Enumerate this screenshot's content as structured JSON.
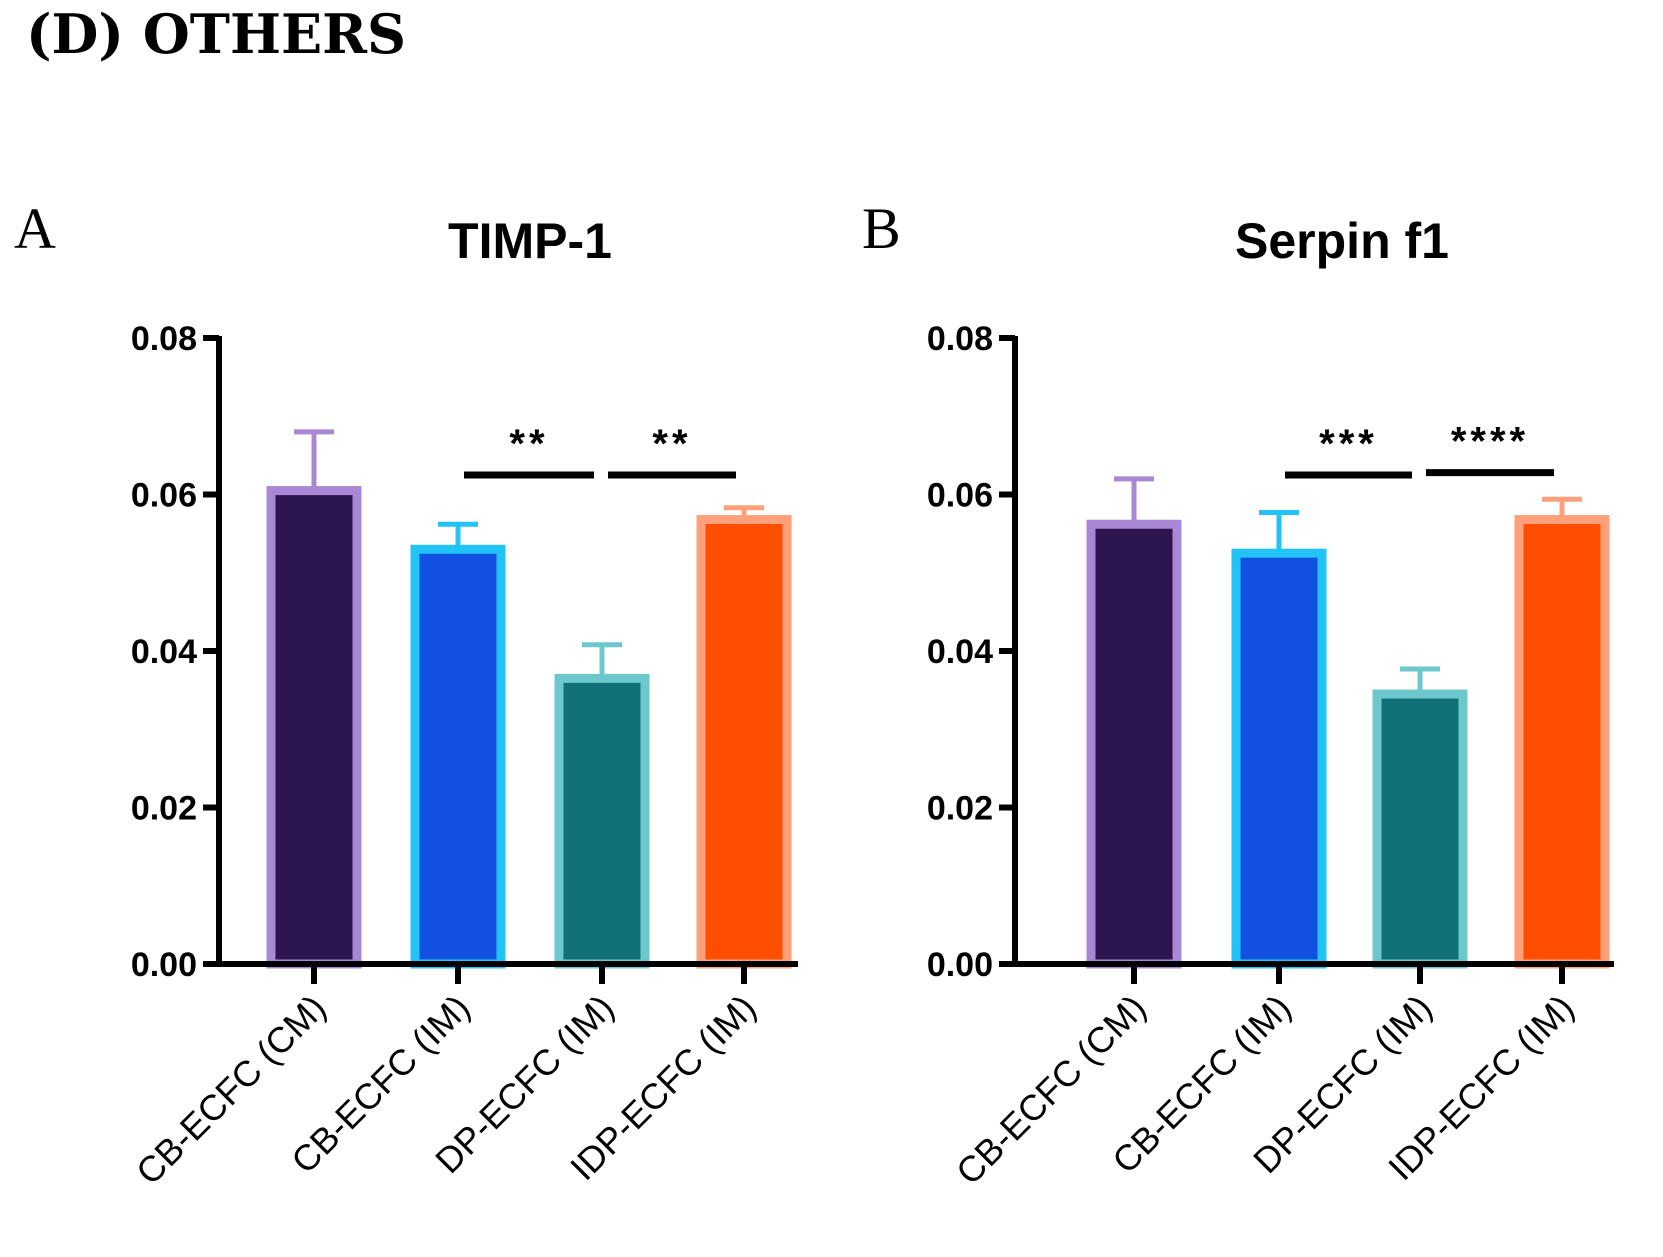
{
  "figure_title": "(D) OTHERS",
  "chart_data": [
    {
      "panel": "A",
      "type": "bar",
      "title": "TIMP-1",
      "xlabel": "",
      "ylabel": "",
      "ylim": [
        0,
        0.08
      ],
      "yticks": [
        "0.00",
        "0.02",
        "0.04",
        "0.06",
        "0.08"
      ],
      "categories": [
        "CB-ECFC (CM)",
        "CB-ECFC (IM)",
        "DP-ECFC (IM)",
        "IDP-ECFC (IM)"
      ],
      "values": [
        0.0605,
        0.053,
        0.0365,
        0.0568
      ],
      "errors": [
        0.0075,
        0.0032,
        0.0043,
        0.0015
      ],
      "fill_colors": [
        "#2d1650",
        "#1150e0",
        "#117078",
        "#ff4e00"
      ],
      "edge_colors": [
        "#a887d4",
        "#22c3f7",
        "#6cc8cc",
        "#ffa07a"
      ],
      "significance": [
        {
          "from": 1,
          "to": 2,
          "label": "**",
          "y": 0.0625
        },
        {
          "from": 2,
          "to": 3,
          "label": "**",
          "y": 0.0625
        }
      ]
    },
    {
      "panel": "B",
      "type": "bar",
      "title": "Serpin f1",
      "xlabel": "",
      "ylabel": "",
      "ylim": [
        0,
        0.08
      ],
      "yticks": [
        "0.00",
        "0.02",
        "0.04",
        "0.06",
        "0.08"
      ],
      "categories": [
        "CB-ECFC (CM)",
        "CB-ECFC (IM)",
        "DP-ECFC (IM)",
        "IDP-ECFC (IM)"
      ],
      "values": [
        0.0562,
        0.0525,
        0.0345,
        0.0568
      ],
      "errors": [
        0.0058,
        0.0052,
        0.0032,
        0.0026
      ],
      "fill_colors": [
        "#2d1650",
        "#1150e0",
        "#117078",
        "#ff4e00"
      ],
      "edge_colors": [
        "#a887d4",
        "#22c3f7",
        "#6cc8cc",
        "#ffa07a"
      ],
      "significance": [
        {
          "from": 1,
          "to": 2,
          "label": "***",
          "y": 0.0625
        },
        {
          "from": 2,
          "to": 3,
          "label": "****",
          "y": 0.0628
        }
      ]
    }
  ]
}
